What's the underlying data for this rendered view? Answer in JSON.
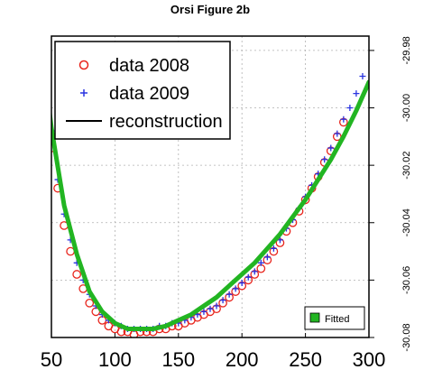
{
  "chart_data": {
    "type": "line",
    "title": "Orsi Figure 2b",
    "xlabel": "",
    "ylabel": "",
    "xlim": [
      50,
      300
    ],
    "ylim": [
      -30.08,
      -29.975
    ],
    "x_ticks": [
      50,
      100,
      150,
      200,
      250,
      300
    ],
    "x_tick_labels": [
      "50",
      "100",
      "150",
      "200",
      "250",
      "300"
    ],
    "y_ticks": [
      -29.98,
      -30.0,
      -30.02,
      -30.04,
      -30.06,
      -30.08
    ],
    "y_tick_labels": [
      "-29.98",
      "-30.00",
      "-30.02",
      "-30.04",
      "-30.06",
      "-30.08"
    ],
    "y_axis_side": "right",
    "grid": true,
    "legend": {
      "position": "top-left",
      "entries": [
        {
          "label": "data 2008",
          "marker": "circle",
          "color": "#e8241c"
        },
        {
          "label": "data 2009",
          "marker": "plus",
          "color": "#2a34e0"
        },
        {
          "label": "reconstruction",
          "marker": "line",
          "color": "#000000"
        }
      ]
    },
    "legend2": {
      "position": "bottom-right",
      "entries": [
        {
          "label": "Fitted",
          "marker": "square",
          "color": "#22b522"
        }
      ]
    },
    "series": [
      {
        "name": "data 2008",
        "style": "marker-circle",
        "color": "#e8241c",
        "x": [
          50,
          55,
          60,
          65,
          70,
          75,
          80,
          85,
          90,
          95,
          100,
          105,
          110,
          115,
          120,
          125,
          130,
          135,
          140,
          145,
          150,
          155,
          160,
          165,
          170,
          175,
          180,
          185,
          190,
          195,
          200,
          205,
          210,
          215,
          220,
          225,
          230,
          235,
          240,
          245,
          250,
          255,
          260,
          265,
          270,
          275,
          280
        ],
        "y": [
          -30.014,
          -30.028,
          -30.041,
          -30.05,
          -30.058,
          -30.063,
          -30.068,
          -30.071,
          -30.074,
          -30.076,
          -30.077,
          -30.078,
          -30.078,
          -30.079,
          -30.078,
          -30.078,
          -30.078,
          -30.077,
          -30.077,
          -30.076,
          -30.076,
          -30.075,
          -30.074,
          -30.073,
          -30.072,
          -30.071,
          -30.07,
          -30.068,
          -30.066,
          -30.064,
          -30.062,
          -30.06,
          -30.058,
          -30.056,
          -30.053,
          -30.05,
          -30.047,
          -30.043,
          -30.04,
          -30.036,
          -30.032,
          -30.028,
          -30.024,
          -30.019,
          -30.015,
          -30.01,
          -30.005
        ]
      },
      {
        "name": "data 2009",
        "style": "marker-plus",
        "color": "#2a34e0",
        "x": [
          50,
          55,
          60,
          65,
          70,
          75,
          80,
          85,
          90,
          95,
          100,
          105,
          110,
          115,
          120,
          125,
          130,
          135,
          140,
          145,
          150,
          155,
          160,
          165,
          170,
          175,
          180,
          185,
          190,
          195,
          200,
          205,
          210,
          215,
          220,
          225,
          230,
          235,
          240,
          245,
          250,
          255,
          260,
          265,
          270,
          275,
          280,
          285,
          290,
          295
        ],
        "y": [
          -30.008,
          -30.025,
          -30.037,
          -30.046,
          -30.054,
          -30.06,
          -30.065,
          -30.069,
          -30.072,
          -30.074,
          -30.075,
          -30.076,
          -30.077,
          -30.077,
          -30.077,
          -30.077,
          -30.077,
          -30.076,
          -30.076,
          -30.075,
          -30.075,
          -30.074,
          -30.073,
          -30.072,
          -30.071,
          -30.07,
          -30.069,
          -30.067,
          -30.065,
          -30.063,
          -30.061,
          -30.059,
          -30.057,
          -30.054,
          -30.052,
          -30.049,
          -30.046,
          -30.042,
          -30.039,
          -30.035,
          -30.031,
          -30.027,
          -30.023,
          -30.018,
          -30.014,
          -30.009,
          -30.004,
          -30.0,
          -29.995,
          -29.989
        ]
      },
      {
        "name": "reconstruction",
        "style": "line",
        "color": "#000000",
        "x": [
          40,
          50,
          60,
          70,
          80,
          90,
          100,
          110,
          120,
          130,
          140,
          150,
          160,
          170,
          180,
          190,
          200,
          210,
          220,
          230,
          240,
          250,
          260,
          270,
          280,
          290,
          300
        ],
        "y": [
          -29.97,
          -30.007,
          -30.034,
          -30.051,
          -30.064,
          -30.071,
          -30.075,
          -30.077,
          -30.077,
          -30.077,
          -30.076,
          -30.074,
          -30.072,
          -30.069,
          -30.066,
          -30.062,
          -30.058,
          -30.054,
          -30.049,
          -30.044,
          -30.038,
          -30.032,
          -30.025,
          -30.018,
          -30.01,
          -30.001,
          -29.991
        ]
      },
      {
        "name": "Fitted",
        "style": "thick-line",
        "color": "#22b522",
        "x": [
          40,
          50,
          60,
          70,
          80,
          90,
          100,
          110,
          120,
          130,
          140,
          150,
          160,
          170,
          180,
          190,
          200,
          210,
          220,
          230,
          240,
          250,
          260,
          270,
          280,
          290,
          300
        ],
        "y": [
          -29.97,
          -30.007,
          -30.034,
          -30.051,
          -30.064,
          -30.071,
          -30.075,
          -30.077,
          -30.077,
          -30.077,
          -30.076,
          -30.074,
          -30.072,
          -30.069,
          -30.066,
          -30.062,
          -30.058,
          -30.054,
          -30.049,
          -30.044,
          -30.038,
          -30.032,
          -30.025,
          -30.018,
          -30.01,
          -30.001,
          -29.991
        ]
      }
    ]
  }
}
